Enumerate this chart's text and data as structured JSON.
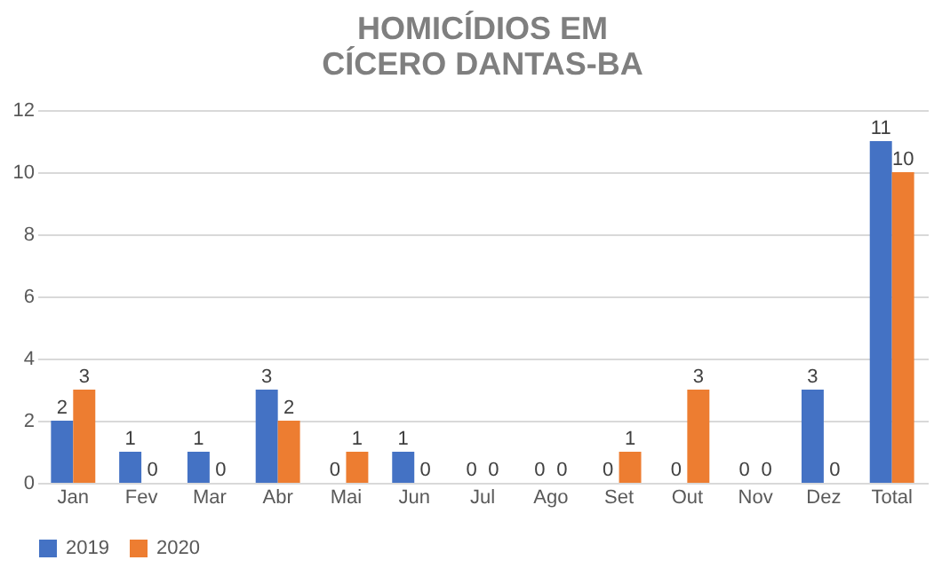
{
  "chart_data": {
    "type": "bar",
    "title": "HOMICÍDIOS EM\nCÍCERO DANTAS-BA",
    "categories": [
      "Jan",
      "Fev",
      "Mar",
      "Abr",
      "Mai",
      "Jun",
      "Jul",
      "Ago",
      "Set",
      "Out",
      "Nov",
      "Dez",
      "Total"
    ],
    "series": [
      {
        "name": "2019",
        "color": "#4472c4",
        "values": [
          2,
          1,
          1,
          3,
          0,
          1,
          0,
          0,
          0,
          0,
          0,
          3,
          11
        ]
      },
      {
        "name": "2020",
        "color": "#ed7d31",
        "values": [
          3,
          0,
          0,
          2,
          1,
          0,
          0,
          0,
          1,
          3,
          0,
          0,
          10
        ]
      }
    ],
    "ylim": [
      0,
      12
    ],
    "yticks": [
      0,
      2,
      4,
      6,
      8,
      10,
      12
    ],
    "grid": "y",
    "legend": "bottom",
    "data_labels": true
  }
}
